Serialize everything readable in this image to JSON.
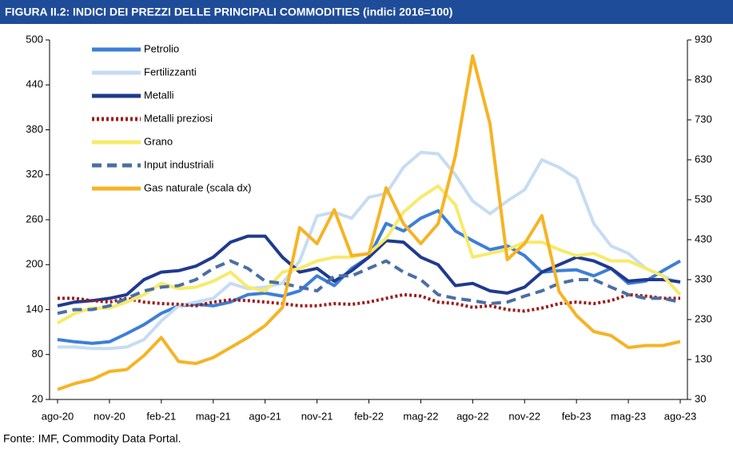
{
  "chart_data": {
    "type": "line",
    "title": "FIGURA II.2: INDICI DEI PREZZI DELLE PRINCIPALI COMMODITIES (indici 2016=100)",
    "source": "Fonte: IMF, Commodity Data Portal.",
    "categories": [
      "ago-20",
      null,
      null,
      "nov-20",
      null,
      null,
      "feb-21",
      null,
      null,
      "mag-21",
      null,
      null,
      "ago-21",
      null,
      null,
      "nov-21",
      null,
      null,
      "feb-22",
      null,
      null,
      "mag-22",
      null,
      null,
      "ago-22",
      null,
      null,
      "nov-22",
      null,
      null,
      "feb-23",
      null,
      null,
      "mag-23",
      null,
      null,
      "ago-23"
    ],
    "ylim": [
      20,
      500
    ],
    "yticks": [
      20,
      80,
      140,
      200,
      260,
      320,
      380,
      440,
      500
    ],
    "y2lim": [
      30,
      930
    ],
    "y2ticks": [
      30,
      130,
      230,
      330,
      430,
      530,
      630,
      730,
      830,
      930
    ],
    "series": [
      {
        "name": "Petrolio",
        "color": "#3c7fd8",
        "style": "solid",
        "values": [
          100,
          97,
          95,
          97,
          108,
          120,
          135,
          145,
          147,
          145,
          150,
          160,
          162,
          158,
          165,
          185,
          172,
          195,
          210,
          255,
          245,
          262,
          272,
          245,
          232,
          220,
          225,
          212,
          190,
          192,
          193,
          185,
          195,
          175,
          178,
          192,
          205
        ]
      },
      {
        "name": "Fertilizzanti",
        "color": "#c6dcf4",
        "style": "solid",
        "values": [
          90,
          90,
          88,
          88,
          90,
          100,
          125,
          145,
          150,
          155,
          175,
          168,
          170,
          175,
          205,
          265,
          270,
          262,
          290,
          295,
          330,
          350,
          348,
          320,
          285,
          268,
          285,
          300,
          340,
          330,
          315,
          255,
          225,
          215,
          195,
          185,
          175
        ]
      },
      {
        "name": "Metalli",
        "color": "#1f3a8f",
        "style": "solid",
        "values": [
          145,
          150,
          152,
          155,
          160,
          180,
          190,
          192,
          198,
          210,
          230,
          238,
          238,
          210,
          190,
          195,
          178,
          192,
          210,
          232,
          230,
          210,
          200,
          172,
          175,
          165,
          162,
          170,
          190,
          200,
          210,
          205,
          195,
          178,
          180,
          180,
          177
        ]
      },
      {
        "name": "Metalli preziosi",
        "color": "#9b1c1c",
        "style": "dotted",
        "values": [
          155,
          155,
          152,
          150,
          155,
          150,
          148,
          147,
          145,
          150,
          153,
          152,
          150,
          148,
          145,
          145,
          148,
          147,
          150,
          155,
          160,
          158,
          150,
          148,
          143,
          145,
          140,
          138,
          142,
          148,
          150,
          148,
          152,
          160,
          158,
          155,
          155
        ]
      },
      {
        "name": "Grano",
        "color": "#f8ea6a",
        "style": "solid",
        "values": [
          122,
          135,
          142,
          142,
          150,
          160,
          175,
          168,
          170,
          178,
          190,
          170,
          165,
          190,
          195,
          205,
          210,
          210,
          215,
          235,
          270,
          290,
          305,
          280,
          210,
          215,
          220,
          230,
          230,
          220,
          212,
          215,
          205,
          205,
          195,
          185,
          160
        ]
      },
      {
        "name": "Input industriali",
        "color": "#4a6fa5",
        "style": "dashed",
        "values": [
          135,
          140,
          140,
          145,
          155,
          165,
          170,
          172,
          180,
          195,
          205,
          195,
          178,
          175,
          170,
          165,
          185,
          185,
          195,
          205,
          190,
          180,
          160,
          155,
          152,
          148,
          150,
          158,
          165,
          175,
          180,
          180,
          170,
          160,
          155,
          155,
          150
        ]
      },
      {
        "name": "Gas naturale (scala dx)",
        "color": "#f6b324",
        "style": "solid",
        "axis": "y2",
        "values": [
          55,
          70,
          80,
          100,
          105,
          140,
          185,
          125,
          120,
          135,
          160,
          185,
          215,
          260,
          460,
          420,
          505,
          390,
          395,
          560,
          470,
          420,
          470,
          640,
          890,
          720,
          380,
          420,
          490,
          300,
          240,
          200,
          190,
          160,
          165,
          165,
          175
        ]
      }
    ]
  }
}
